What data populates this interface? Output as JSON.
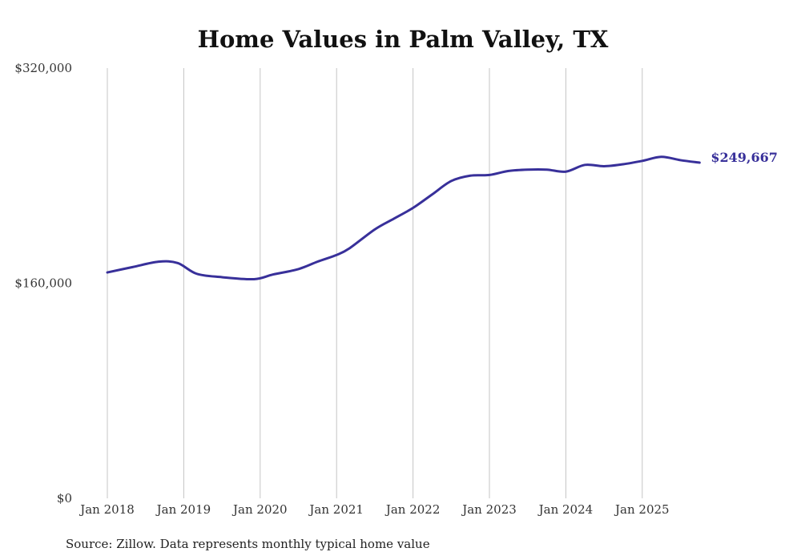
{
  "chart_data": {
    "type": "line",
    "title": "Home Values in Palm Valley, TX",
    "xlabel": "",
    "ylabel": "",
    "source_note": "Source: Zillow. Data represents monthly typical home value",
    "ylim": [
      0,
      320000
    ],
    "y_ticks": [
      {
        "value": 0,
        "label": "$0"
      },
      {
        "value": 160000,
        "label": "$160,000"
      },
      {
        "value": 320000,
        "label": "$320,000"
      }
    ],
    "x_ticks": [
      {
        "value": 2018.0,
        "label": "Jan 2018"
      },
      {
        "value": 2019.0,
        "label": "Jan 2019"
      },
      {
        "value": 2020.0,
        "label": "Jan 2020"
      },
      {
        "value": 2021.0,
        "label": "Jan 2021"
      },
      {
        "value": 2022.0,
        "label": "Jan 2022"
      },
      {
        "value": 2023.0,
        "label": "Jan 2023"
      },
      {
        "value": 2024.0,
        "label": "Jan 2024"
      },
      {
        "value": 2025.0,
        "label": "Jan 2025"
      }
    ],
    "grid": "vertical",
    "colors": {
      "line": "#38309a",
      "grid": "#c4c4c4"
    },
    "end_label": "$249,667",
    "series": [
      {
        "values": [
          {
            "x": 2018.0,
            "y": 168000
          },
          {
            "x": 2018.33,
            "y": 172000
          },
          {
            "x": 2018.67,
            "y": 176000
          },
          {
            "x": 2018.92,
            "y": 175000
          },
          {
            "x": 2019.17,
            "y": 167000
          },
          {
            "x": 2019.5,
            "y": 164500
          },
          {
            "x": 2019.92,
            "y": 163000
          },
          {
            "x": 2020.17,
            "y": 166500
          },
          {
            "x": 2020.5,
            "y": 170500
          },
          {
            "x": 2020.75,
            "y": 176000
          },
          {
            "x": 2021.0,
            "y": 181000
          },
          {
            "x": 2021.17,
            "y": 186000
          },
          {
            "x": 2021.5,
            "y": 200000
          },
          {
            "x": 2021.75,
            "y": 208000
          },
          {
            "x": 2022.0,
            "y": 216000
          },
          {
            "x": 2022.25,
            "y": 226000
          },
          {
            "x": 2022.5,
            "y": 236000
          },
          {
            "x": 2022.75,
            "y": 240000
          },
          {
            "x": 2023.0,
            "y": 240500
          },
          {
            "x": 2023.25,
            "y": 243500
          },
          {
            "x": 2023.5,
            "y": 244500
          },
          {
            "x": 2023.75,
            "y": 244500
          },
          {
            "x": 2024.0,
            "y": 243000
          },
          {
            "x": 2024.25,
            "y": 248000
          },
          {
            "x": 2024.5,
            "y": 247000
          },
          {
            "x": 2024.75,
            "y": 248500
          },
          {
            "x": 2025.0,
            "y": 251000
          },
          {
            "x": 2025.25,
            "y": 254000
          },
          {
            "x": 2025.5,
            "y": 251500
          },
          {
            "x": 2025.75,
            "y": 249667
          }
        ]
      }
    ]
  }
}
